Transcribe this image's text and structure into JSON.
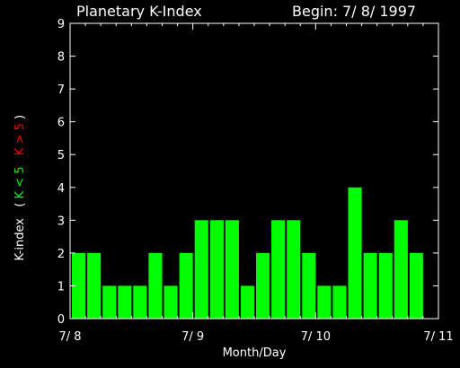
{
  "header": {
    "title": "Planetary K-Index",
    "begin": "Begin: 7/ 8/ 1997"
  },
  "chart_data": {
    "type": "bar",
    "title": "Planetary K-Index",
    "subtitle": "Begin: 7/ 8/ 1997",
    "xlabel": "Month/Day",
    "ylabel": "K-index",
    "ylabel_legend": {
      "open": "(",
      "low": "K < 5",
      "high": "K > 5",
      "close": ")"
    },
    "ylim": [
      0,
      9
    ],
    "yticks": [
      "0",
      "1",
      "2",
      "3",
      "4",
      "5",
      "6",
      "7",
      "8",
      "9"
    ],
    "xticks": [
      "7/ 8",
      "7/ 9",
      "7/ 10",
      "7/ 11"
    ],
    "xlim_days": 3,
    "interval_hours": 3,
    "values": [
      2,
      2,
      1,
      1,
      1,
      2,
      1,
      2,
      3,
      3,
      3,
      1,
      2,
      3,
      3,
      2,
      1,
      1,
      4,
      2,
      2,
      3,
      2
    ],
    "threshold": 5,
    "colors": {
      "low": "#00ff00",
      "high": "#ff0000",
      "axis": "#ffffff",
      "background": "#000000"
    },
    "grid": false
  }
}
